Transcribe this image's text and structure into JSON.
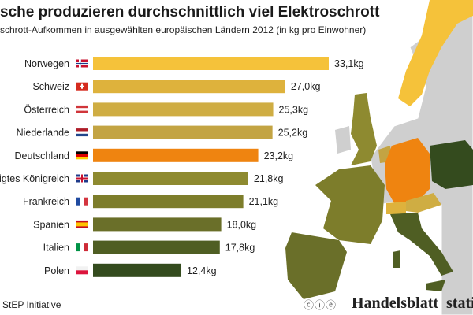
{
  "chart_data": {
    "type": "bar",
    "orientation": "horizontal",
    "title": "sche produzieren durchschnittlich viel Elektroschrott",
    "subtitle": "schrott-Aufkommen in ausgewählten europäischen Ländern 2012 (in kg pro Einwohner)",
    "categories": [
      "Norwegen",
      "Schweiz",
      "Österreich",
      "Niederlande",
      "Deutschland",
      "igtes Königreich",
      "Frankreich",
      "Spanien",
      "Italien",
      "Polen"
    ],
    "values": [
      33.1,
      27.0,
      25.3,
      25.2,
      23.2,
      21.8,
      21.1,
      18.0,
      17.8,
      12.4
    ],
    "value_labels": [
      "33,1kg",
      "27,0kg",
      "25,3kg",
      "25,2kg",
      "23,2kg",
      "21,8kg",
      "21,1kg",
      "18,0kg",
      "17,8kg",
      "12,4kg"
    ],
    "colors": [
      "#f5c23a",
      "#deb23c",
      "#cfad43",
      "#c3a443",
      "#ef8410",
      "#8e8a30",
      "#7d7d2b",
      "#6a6f29",
      "#4f5e23",
      "#344b1e"
    ],
    "flags": [
      "norway-flag",
      "switzerland-flag",
      "austria-flag",
      "netherlands-flag",
      "germany-flag",
      "uk-flag",
      "france-flag",
      "spain-flag",
      "italy-flag",
      "poland-flag"
    ],
    "grid": false,
    "legend": "none"
  },
  "footer": {
    "source": "StEP Initiative",
    "license_icons": "cc-by-nd-icons",
    "publisher": "Handelsblatt",
    "brand": "stati"
  }
}
